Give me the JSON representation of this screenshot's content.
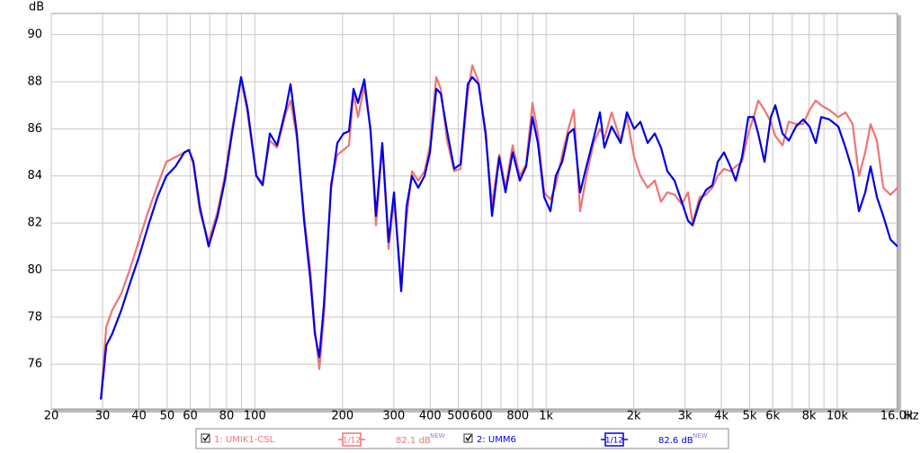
{
  "chart_data": {
    "type": "line",
    "ylabel": "dB",
    "xlabel": "Hz",
    "xscale": "log",
    "grid": true,
    "xlim": [
      20,
      16110
    ],
    "ylim": [
      74.1,
      90.9
    ],
    "yticks": [
      76,
      78,
      80,
      82,
      84,
      86,
      88,
      90
    ],
    "xticks": [
      20,
      30,
      40,
      50,
      60,
      80,
      100,
      200,
      300,
      400,
      500,
      600,
      800,
      {
        "value": 1000,
        "label": "1k"
      },
      {
        "value": 2000,
        "label": "2k"
      },
      {
        "value": 3000,
        "label": "3k"
      },
      {
        "value": 4000,
        "label": "4k"
      },
      {
        "value": 5000,
        "label": "5k"
      },
      {
        "value": 6000,
        "label": "6k"
      },
      {
        "value": 8000,
        "label": "8k"
      },
      {
        "value": 10000,
        "label": "10k"
      },
      {
        "value": 16000,
        "label": "16.0k"
      }
    ],
    "x_minor_grid": [
      70,
      90,
      700,
      900,
      7000,
      9000
    ],
    "x": [
      29.6,
      30.9,
      32.4,
      34.8,
      37.4,
      40.1,
      43.1,
      46.3,
      49.7,
      53.4,
      57.3,
      59.4,
      61.5,
      64.7,
      69.4,
      74.5,
      78.9,
      83.5,
      89.7,
      94.3,
      101.2,
      106.4,
      112.6,
      119.2,
      128,
      132.6,
      139.4,
      147.6,
      155.1,
      160.7,
      166.5,
      172.6,
      182.7,
      192,
      201.7,
      210.5,
      218.2,
      226.1,
      237.6,
      249.7,
      260.6,
      273.9,
      287.9,
      300.5,
      318.1,
      331.9,
      346.4,
      363.9,
      382.6,
      399.3,
      419.7,
      435,
      457.2,
      483.9,
      508.6,
      538.4,
      557.9,
      586.3,
      620.7,
      652.3,
      690.4,
      725.6,
      767.9,
      812.8,
      854.2,
      898,
      937.2,
      985,
      1035,
      1080,
      1136,
      1193,
      1246,
      1309,
      1376,
      1457,
      1531,
      1586,
      1679,
      1803,
      1895,
      2006,
      2108,
      2232,
      2362,
      2482,
      2609,
      2761,
      2923,
      3072,
      3184,
      3370,
      3543,
      3724,
      3886,
      4085,
      4293,
      4479,
      4708,
      4948,
      5164,
      5351,
      5624,
      5911,
      6125,
      6484,
      6815,
      7214,
      7637,
      8026,
      8436,
      8804,
      9387,
      10080,
      10670,
      11290,
      11870,
      12470,
      13010,
      13680,
      14380,
      15220,
      16110
    ],
    "series": [
      {
        "name": "1: UMIK1-CSL",
        "color": "#f07474",
        "smoothing": "1/12",
        "level": "82.1 dB",
        "level_badge": "NEW",
        "values": [
          74.5,
          77.6,
          78.3,
          79.0,
          80.1,
          81.3,
          82.5,
          83.6,
          84.6,
          84.8,
          85.0,
          85.1,
          84.5,
          82.5,
          81.2,
          82.5,
          84.0,
          86.0,
          88.1,
          86.7,
          84.0,
          83.7,
          85.5,
          85.2,
          86.7,
          87.2,
          85.6,
          82.3,
          80.0,
          77.5,
          75.8,
          78.0,
          83.7,
          84.9,
          85.1,
          85.3,
          87.5,
          86.5,
          87.8,
          86.0,
          81.9,
          85.3,
          80.9,
          83.0,
          79.5,
          82.2,
          84.2,
          83.8,
          84.2,
          85.3,
          88.2,
          87.7,
          85.5,
          84.2,
          84.3,
          87.5,
          88.7,
          88.0,
          85.6,
          82.8,
          84.9,
          83.5,
          85.3,
          84.0,
          84.5,
          87.1,
          85.8,
          83.3,
          83.0,
          83.6,
          84.9,
          86.0,
          86.8,
          82.5,
          84.0,
          85.4,
          86.0,
          85.6,
          86.7,
          85.5,
          86.5,
          84.8,
          84.0,
          83.5,
          83.8,
          82.9,
          83.3,
          83.2,
          82.8,
          83.3,
          82.0,
          83.1,
          83.2,
          83.5,
          84.0,
          84.3,
          84.2,
          84.4,
          84.6,
          85.8,
          86.5,
          87.2,
          86.8,
          86.3,
          85.7,
          85.3,
          86.3,
          86.2,
          86.2,
          86.8,
          87.2,
          87.0,
          86.8,
          86.5,
          86.7,
          86.2,
          84.0,
          85.0,
          86.2,
          85.5,
          83.5,
          83.2,
          83.5
        ]
      },
      {
        "name": "2: UMM6",
        "color": "#0000e6",
        "smoothing": "1/12",
        "level": "82.6 dB",
        "level_badge": "NEW",
        "values": [
          74.5,
          76.8,
          77.3,
          78.3,
          79.5,
          80.6,
          81.9,
          83.1,
          84.0,
          84.4,
          85.0,
          85.1,
          84.6,
          82.7,
          81.0,
          82.3,
          83.8,
          85.8,
          88.2,
          86.9,
          84.0,
          83.6,
          85.8,
          85.3,
          86.9,
          87.9,
          85.8,
          82.1,
          79.6,
          77.3,
          76.3,
          78.5,
          83.5,
          85.4,
          85.8,
          85.9,
          87.7,
          87.1,
          88.1,
          85.9,
          82.3,
          85.4,
          81.2,
          83.3,
          79.1,
          82.7,
          84.0,
          83.5,
          84.0,
          85.0,
          87.7,
          87.5,
          85.9,
          84.3,
          84.5,
          87.9,
          88.2,
          87.9,
          85.8,
          82.3,
          84.8,
          83.3,
          85.0,
          83.8,
          84.4,
          86.5,
          85.4,
          83.1,
          82.5,
          84.0,
          84.6,
          85.8,
          86.0,
          83.3,
          84.4,
          85.6,
          86.7,
          85.2,
          86.1,
          85.4,
          86.7,
          86.0,
          86.3,
          85.4,
          85.8,
          85.2,
          84.2,
          83.8,
          82.9,
          82.1,
          81.9,
          82.9,
          83.4,
          83.6,
          84.6,
          85.0,
          84.4,
          83.8,
          84.8,
          86.5,
          86.5,
          85.8,
          84.6,
          86.5,
          87.0,
          85.8,
          85.5,
          86.1,
          86.4,
          86.1,
          85.4,
          86.5,
          86.4,
          86.1,
          85.2,
          84.2,
          82.5,
          83.3,
          84.4,
          83.1,
          82.3,
          81.3,
          81.0
        ]
      }
    ]
  }
}
